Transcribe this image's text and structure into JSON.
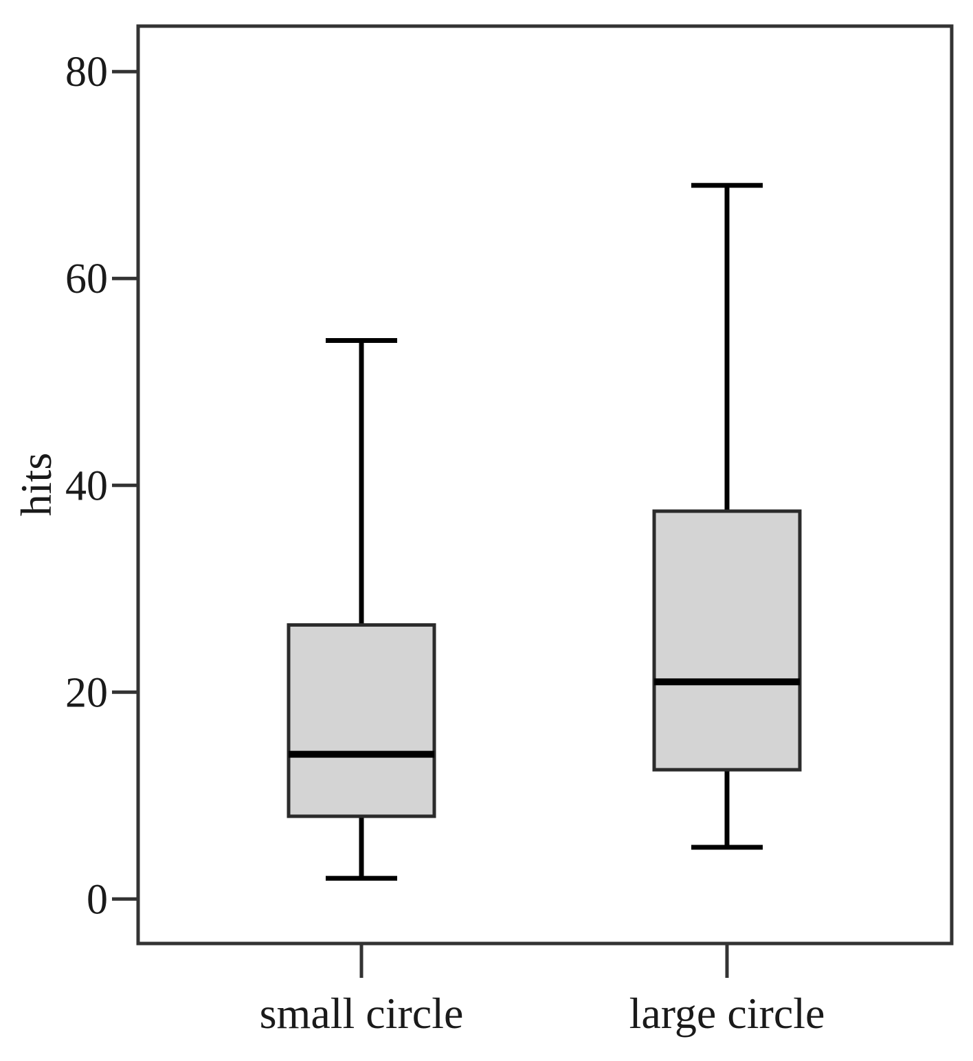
{
  "chart_data": {
    "type": "box",
    "ylabel": "hits",
    "xlabel": "",
    "ylim": [
      -4.3,
      84.4
    ],
    "yticks": [
      "0",
      "20",
      "40",
      "60",
      "80"
    ],
    "grid": false,
    "categories": [
      "small circle",
      "large circle"
    ],
    "boxes": [
      {
        "category": "small circle",
        "min": 2,
        "q1": 8,
        "median": 14,
        "q3": 26.5,
        "max": 54
      },
      {
        "category": "large circle",
        "min": 5,
        "q1": 12.5,
        "median": 21,
        "q3": 37.5,
        "max": 69
      }
    ],
    "colors": {
      "box_fill": "#d4d4d4",
      "box_stroke": "#2b2b2b",
      "median": "#000000",
      "whisker": "#000000",
      "frame": "#333333"
    }
  }
}
